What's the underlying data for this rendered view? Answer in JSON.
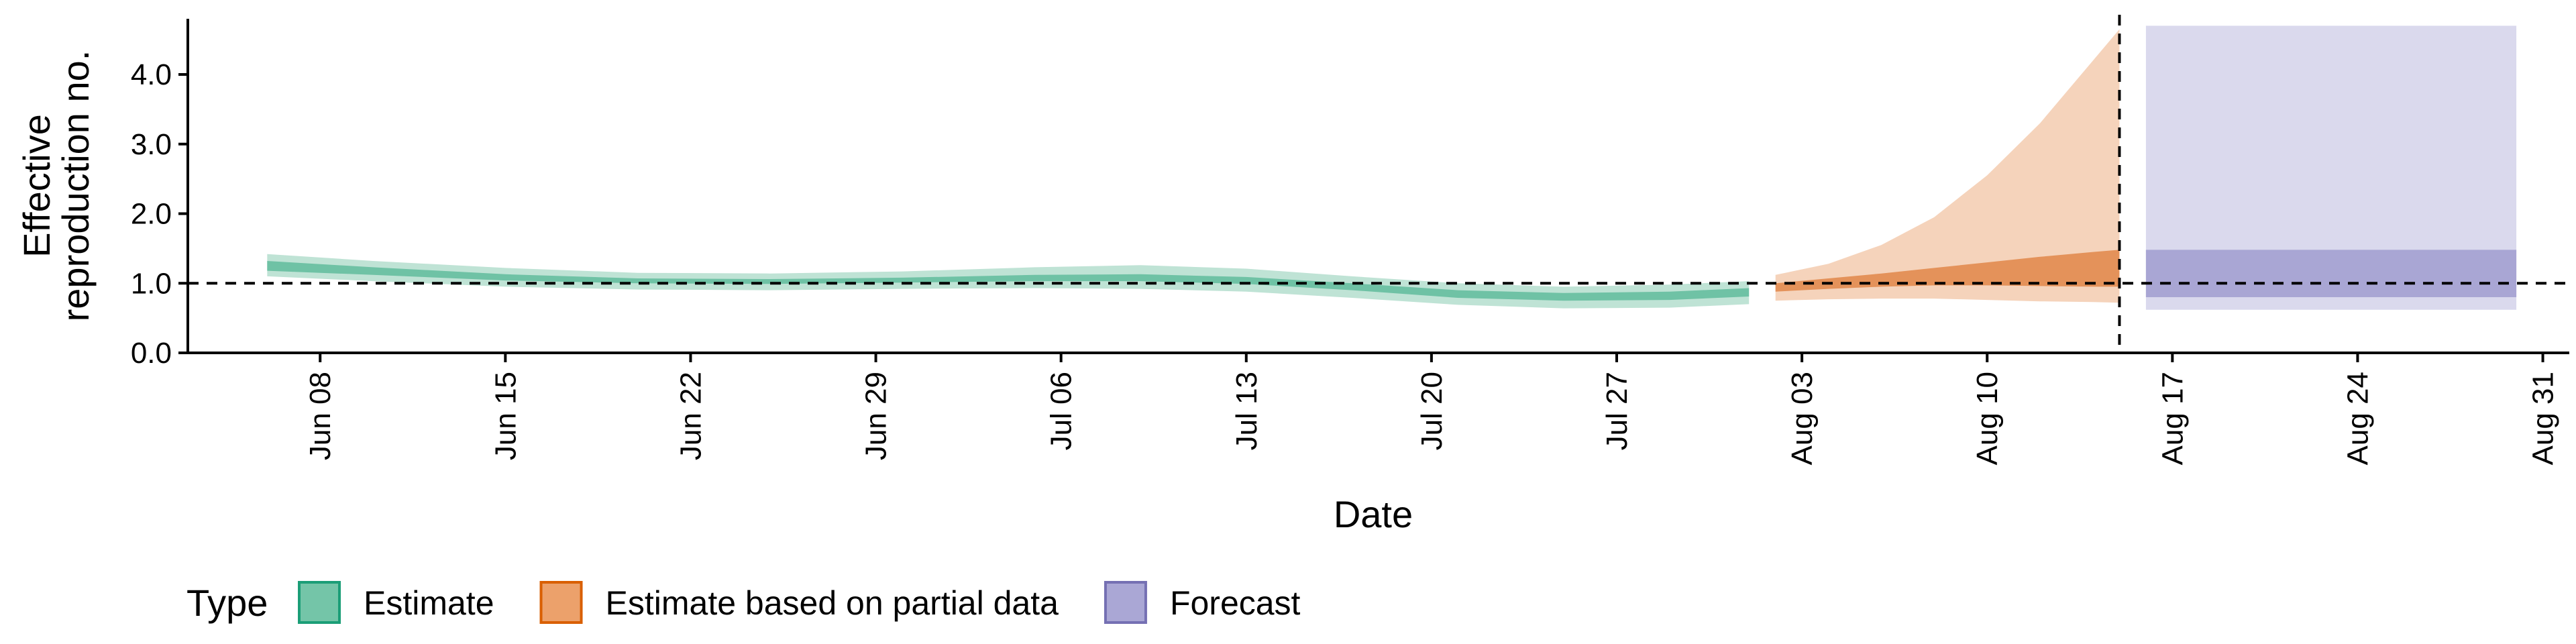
{
  "chart_data": {
    "type": "area",
    "xlabel": "Date",
    "ylabel": [
      "Effective",
      "reproduction no."
    ],
    "ylim": [
      0,
      4.8
    ],
    "xlim": [
      "2020-06-03",
      "2020-09-01"
    ],
    "yticks": [
      {
        "value": 0.0,
        "label": "0.0"
      },
      {
        "value": 1.0,
        "label": "1.0"
      },
      {
        "value": 2.0,
        "label": "2.0"
      },
      {
        "value": 3.0,
        "label": "3.0"
      },
      {
        "value": 4.0,
        "label": "4.0"
      }
    ],
    "xticks": [
      {
        "date": "2020-06-08",
        "label": "Jun 08"
      },
      {
        "date": "2020-06-15",
        "label": "Jun 15"
      },
      {
        "date": "2020-06-22",
        "label": "Jun 22"
      },
      {
        "date": "2020-06-29",
        "label": "Jun 29"
      },
      {
        "date": "2020-07-06",
        "label": "Jul 06"
      },
      {
        "date": "2020-07-13",
        "label": "Jul 13"
      },
      {
        "date": "2020-07-20",
        "label": "Jul 20"
      },
      {
        "date": "2020-07-27",
        "label": "Jul 27"
      },
      {
        "date": "2020-08-03",
        "label": "Aug 03"
      },
      {
        "date": "2020-08-10",
        "label": "Aug 10"
      },
      {
        "date": "2020-08-17",
        "label": "Aug 17"
      },
      {
        "date": "2020-08-24",
        "label": "Aug 24"
      },
      {
        "date": "2020-08-31",
        "label": "Aug 31"
      }
    ],
    "reference_hline": 1.0,
    "reference_vline": "2020-08-15",
    "legend": {
      "title": "Type",
      "position": "bottom",
      "entries": [
        {
          "label": "Estimate",
          "fill": "#74c5a8",
          "stroke": "#1b9e77"
        },
        {
          "label": "Estimate based on partial data",
          "fill": "#eca16b",
          "stroke": "#d95f02"
        },
        {
          "label": "Forecast",
          "fill": "#aaa7d5",
          "stroke": "#7570b3"
        }
      ]
    },
    "series": [
      {
        "name": "Estimate",
        "outer_color": "#bfe3d5",
        "inner_color": "#6fc2a5",
        "points": [
          {
            "x": "2020-06-06",
            "lo90": 1.1,
            "hi90": 1.42,
            "lo50": 1.18,
            "hi50": 1.32
          },
          {
            "x": "2020-06-10",
            "lo90": 1.03,
            "hi90": 1.32,
            "lo50": 1.12,
            "hi50": 1.23
          },
          {
            "x": "2020-06-15",
            "lo90": 0.95,
            "hi90": 1.22,
            "lo50": 1.04,
            "hi50": 1.13
          },
          {
            "x": "2020-06-20",
            "lo90": 0.91,
            "hi90": 1.15,
            "lo50": 1.0,
            "hi50": 1.07
          },
          {
            "x": "2020-06-25",
            "lo90": 0.9,
            "hi90": 1.14,
            "lo50": 0.99,
            "hi50": 1.06
          },
          {
            "x": "2020-06-30",
            "lo90": 0.92,
            "hi90": 1.17,
            "lo50": 1.01,
            "hi50": 1.08
          },
          {
            "x": "2020-07-05",
            "lo90": 0.93,
            "hi90": 1.23,
            "lo50": 1.03,
            "hi50": 1.12
          },
          {
            "x": "2020-07-09",
            "lo90": 0.92,
            "hi90": 1.26,
            "lo50": 1.03,
            "hi50": 1.13
          },
          {
            "x": "2020-07-13",
            "lo90": 0.88,
            "hi90": 1.21,
            "lo50": 0.99,
            "hi50": 1.09
          },
          {
            "x": "2020-07-17",
            "lo90": 0.79,
            "hi90": 1.1,
            "lo50": 0.9,
            "hi50": 1.0
          },
          {
            "x": "2020-07-21",
            "lo90": 0.69,
            "hi90": 1.0,
            "lo50": 0.79,
            "hi50": 0.9
          },
          {
            "x": "2020-07-25",
            "lo90": 0.64,
            "hi90": 0.95,
            "lo50": 0.75,
            "hi50": 0.86
          },
          {
            "x": "2020-07-29",
            "lo90": 0.65,
            "hi90": 0.98,
            "lo50": 0.76,
            "hi50": 0.88
          },
          {
            "x": "2020-08-01",
            "lo90": 0.7,
            "hi90": 1.03,
            "lo50": 0.81,
            "hi50": 0.93
          }
        ]
      },
      {
        "name": "Estimate based on partial data",
        "outer_color": "#f5d3bb",
        "inner_color": "#e4925a",
        "points": [
          {
            "x": "2020-08-02",
            "lo90": 0.75,
            "hi90": 1.12,
            "lo50": 0.88,
            "hi50": 1.0
          },
          {
            "x": "2020-08-04",
            "lo90": 0.77,
            "hi90": 1.28,
            "lo50": 0.92,
            "hi50": 1.07
          },
          {
            "x": "2020-08-06",
            "lo90": 0.78,
            "hi90": 1.55,
            "lo50": 0.95,
            "hi50": 1.14
          },
          {
            "x": "2020-08-08",
            "lo90": 0.78,
            "hi90": 1.95,
            "lo50": 0.97,
            "hi50": 1.22
          },
          {
            "x": "2020-08-10",
            "lo90": 0.76,
            "hi90": 2.55,
            "lo50": 0.97,
            "hi50": 1.3
          },
          {
            "x": "2020-08-12",
            "lo90": 0.74,
            "hi90": 3.3,
            "lo50": 0.96,
            "hi50": 1.38
          },
          {
            "x": "2020-08-14",
            "lo90": 0.73,
            "hi90": 4.2,
            "lo50": 0.95,
            "hi50": 1.45
          },
          {
            "x": "2020-08-15",
            "lo90": 0.72,
            "hi90": 4.65,
            "lo50": 0.95,
            "hi50": 1.48
          }
        ]
      },
      {
        "name": "Forecast",
        "outer_color": "#dad9ed",
        "inner_color": "#a9a6d4",
        "points": [
          {
            "x": "2020-08-16",
            "lo90": 0.62,
            "hi90": 4.7,
            "lo50": 0.8,
            "hi50": 1.48
          },
          {
            "x": "2020-08-30",
            "lo90": 0.62,
            "hi90": 4.7,
            "lo50": 0.8,
            "hi50": 1.48
          }
        ]
      }
    ]
  }
}
